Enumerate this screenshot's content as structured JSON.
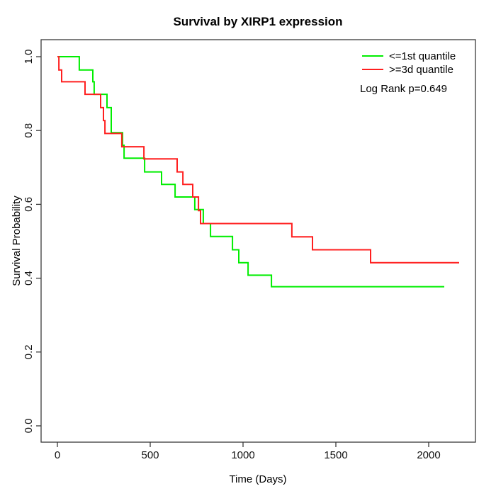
{
  "chart_data": {
    "type": "line",
    "subtype": "kaplan-meier-step",
    "title": "Survival by XIRP1 expression",
    "xlabel": "Time (Days)",
    "ylabel": "Survival Probability",
    "xlim": [
      0,
      2200
    ],
    "ylim": [
      0.0,
      1.0
    ],
    "grid": false,
    "legend_position": "top-right",
    "annotation": "Log Rank p=0.649",
    "frame_color": "#3a3a3a",
    "xticks": {
      "values": [
        0,
        500,
        1000,
        1500,
        2000
      ],
      "labels": [
        "0",
        "500",
        "1000",
        "1500",
        "2000"
      ]
    },
    "yticks": {
      "values": [
        0.0,
        0.2,
        0.4,
        0.6,
        0.8,
        1.0
      ],
      "labels": [
        "0.0",
        "0.2",
        "0.4",
        "0.6",
        "0.8",
        "1.0"
      ]
    },
    "series": [
      {
        "name": "<=1st quantile",
        "color": "#00ee00",
        "end_day": 2084,
        "points": [
          [
            0,
            1.0
          ],
          [
            118,
            0.964
          ],
          [
            191,
            0.932
          ],
          [
            198,
            0.898
          ],
          [
            267,
            0.862
          ],
          [
            290,
            0.794
          ],
          [
            351,
            0.76
          ],
          [
            359,
            0.725
          ],
          [
            470,
            0.688
          ],
          [
            561,
            0.654
          ],
          [
            634,
            0.62
          ],
          [
            740,
            0.586
          ],
          [
            786,
            0.548
          ],
          [
            825,
            0.513
          ],
          [
            943,
            0.477
          ],
          [
            977,
            0.442
          ],
          [
            1027,
            0.408
          ],
          [
            1153,
            0.377
          ]
        ]
      },
      {
        "name": ">=3d quantile",
        "color": "#ff1f1f",
        "end_day": 2164,
        "points": [
          [
            0,
            1.0
          ],
          [
            8,
            0.964
          ],
          [
            23,
            0.932
          ],
          [
            149,
            0.898
          ],
          [
            233,
            0.862
          ],
          [
            248,
            0.827
          ],
          [
            256,
            0.792
          ],
          [
            347,
            0.756
          ],
          [
            466,
            0.723
          ],
          [
            645,
            0.688
          ],
          [
            676,
            0.654
          ],
          [
            729,
            0.62
          ],
          [
            760,
            0.583
          ],
          [
            771,
            0.548
          ],
          [
            1263,
            0.512
          ],
          [
            1374,
            0.477
          ],
          [
            1687,
            0.442
          ]
        ]
      }
    ]
  },
  "legend": {
    "note": "Log Rank p=0.649"
  }
}
